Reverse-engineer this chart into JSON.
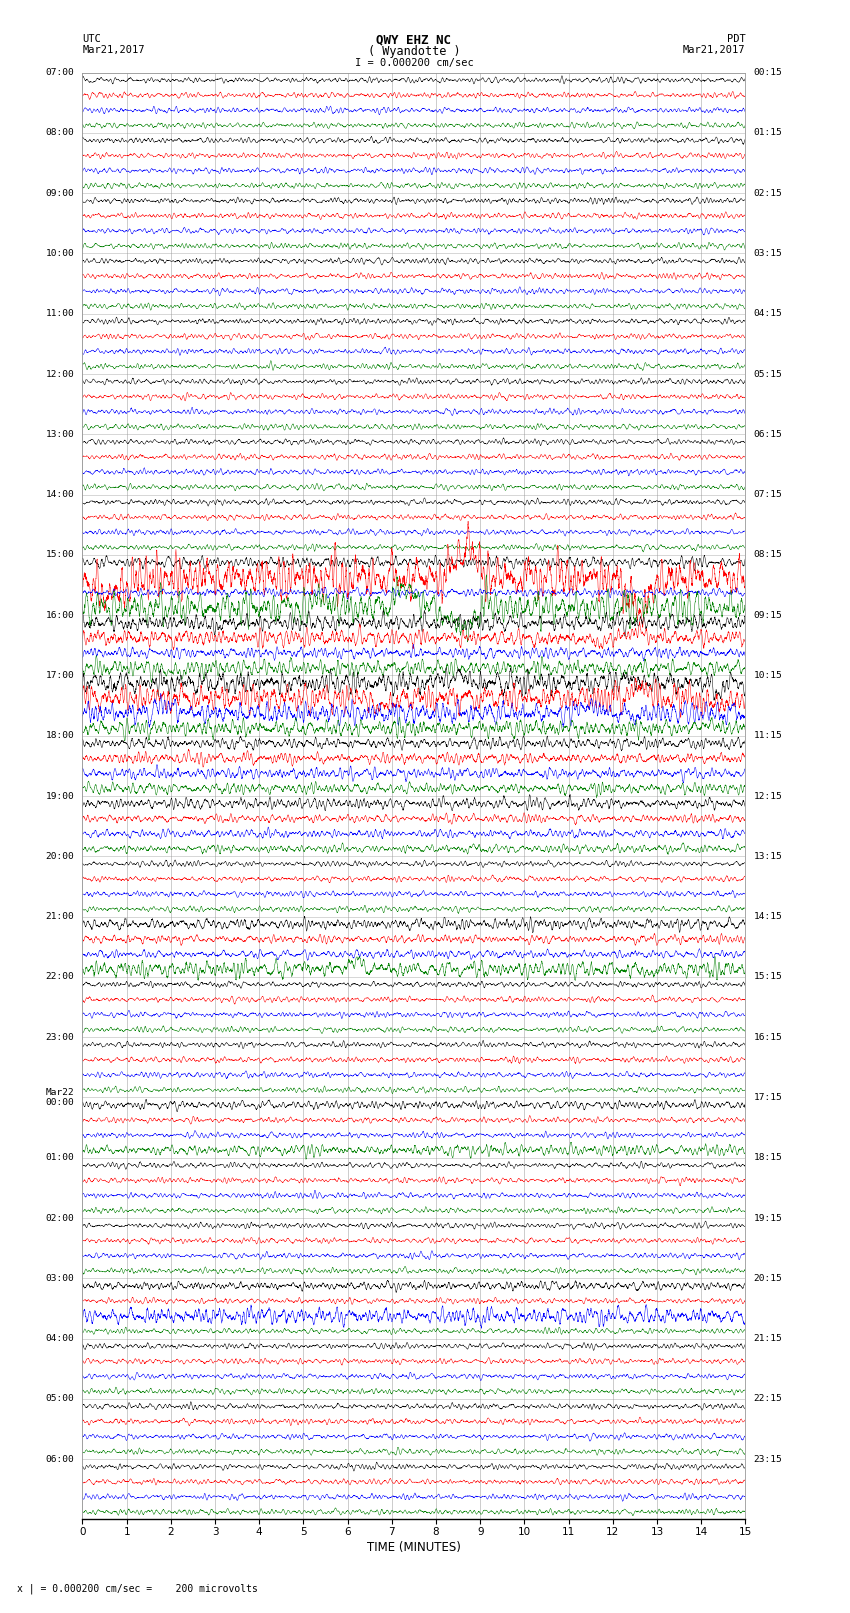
{
  "title_line1": "QWY EHZ NC",
  "title_line2": "( Wyandotte )",
  "title_scale": "I = 0.000200 cm/sec",
  "label_left_top": "UTC",
  "label_left_date": "Mar21,2017",
  "label_right_top": "PDT",
  "label_right_date": "Mar21,2017",
  "xlabel": "TIME (MINUTES)",
  "scale_label": "x | = 0.000200 cm/sec =    200 microvolts",
  "utc_labels": [
    "07:00",
    "08:00",
    "09:00",
    "10:00",
    "11:00",
    "12:00",
    "13:00",
    "14:00",
    "15:00",
    "16:00",
    "17:00",
    "18:00",
    "19:00",
    "20:00",
    "21:00",
    "22:00",
    "23:00",
    "Mar22\n00:00",
    "01:00",
    "02:00",
    "03:00",
    "04:00",
    "05:00",
    "06:00"
  ],
  "pdt_labels": [
    "00:15",
    "01:15",
    "02:15",
    "03:15",
    "04:15",
    "05:15",
    "06:15",
    "07:15",
    "08:15",
    "09:15",
    "10:15",
    "11:15",
    "12:15",
    "13:15",
    "14:15",
    "15:15",
    "16:15",
    "17:15",
    "18:15",
    "19:15",
    "20:15",
    "21:15",
    "22:15",
    "23:15"
  ],
  "num_rows": 24,
  "traces_per_row": 4,
  "colors": [
    "black",
    "red",
    "blue",
    "green"
  ],
  "bg_color": "white",
  "x_min": 0,
  "x_max": 15,
  "x_ticks": [
    0,
    1,
    2,
    3,
    4,
    5,
    6,
    7,
    8,
    9,
    10,
    11,
    12,
    13,
    14,
    15
  ],
  "grid_color": "#999999",
  "base_amp": 0.08,
  "event_rows": {
    "8": {
      "amps": [
        2.0,
        8.0,
        1.5,
        6.0
      ]
    },
    "9": {
      "amps": [
        3.0,
        3.0,
        2.0,
        3.0
      ]
    },
    "10": {
      "amps": [
        4.0,
        5.0,
        4.0,
        3.0
      ]
    },
    "11": {
      "amps": [
        2.0,
        2.0,
        2.0,
        2.0
      ]
    },
    "12": {
      "amps": [
        2.0,
        1.5,
        1.5,
        1.5
      ]
    },
    "14": {
      "amps": [
        2.0,
        1.5,
        1.5,
        3.0
      ]
    },
    "17": {
      "amps": [
        1.5,
        1.0,
        1.0,
        2.0
      ]
    },
    "20": {
      "amps": [
        1.5,
        1.0,
        3.0,
        1.0
      ]
    }
  }
}
